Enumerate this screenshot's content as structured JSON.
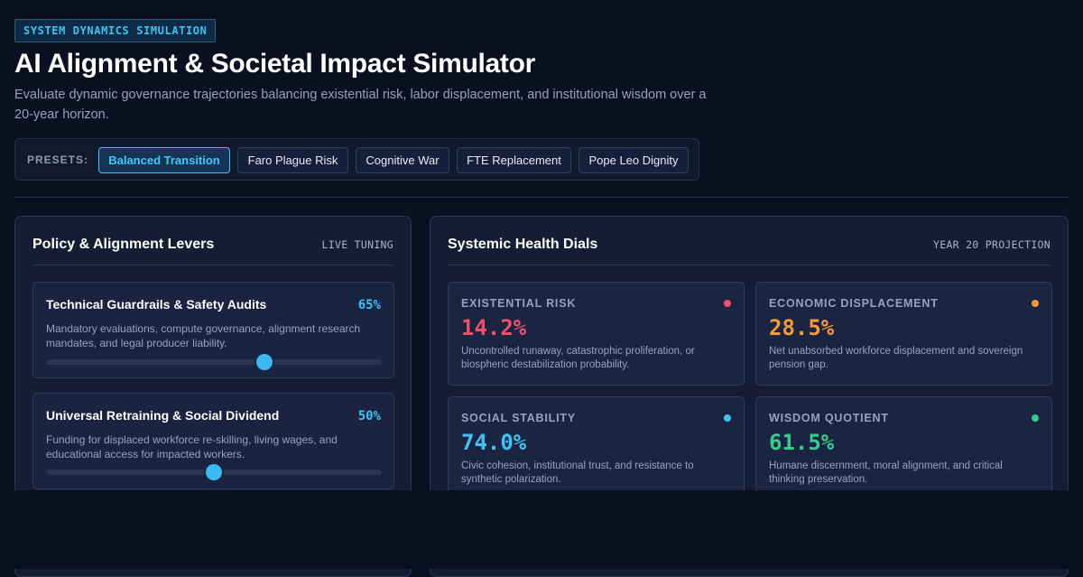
{
  "header": {
    "tag": "SYSTEM DYNAMICS SIMULATION",
    "title": "AI Alignment & Societal Impact Simulator",
    "subtitle": "Evaluate dynamic governance trajectories balancing existential risk, labor displacement, and institutional wisdom over a 20-year horizon."
  },
  "presets": {
    "label": "PRESETS:",
    "items": [
      {
        "label": "Balanced Transition",
        "active": true
      },
      {
        "label": "Faro Plague Risk",
        "active": false
      },
      {
        "label": "Cognitive War",
        "active": false
      },
      {
        "label": "FTE Replacement",
        "active": false
      },
      {
        "label": "Pope Leo Dignity",
        "active": false
      }
    ]
  },
  "levers_panel": {
    "title": "Policy & Alignment Levers",
    "meta": "LIVE TUNING",
    "levers": [
      {
        "title": "Technical Guardrails & Safety Audits",
        "value_text": "65%",
        "value": 0.65,
        "description": "Mandatory evaluations, compute governance, alignment research mandates, and legal producer liability."
      },
      {
        "title": "Universal Retraining & Social Dividend",
        "value_text": "50%",
        "value": 0.5,
        "description": "Funding for displaced workforce re-skilling, living wages, and educational access for impacted workers."
      }
    ]
  },
  "dials_panel": {
    "title": "Systemic Health Dials",
    "meta": "YEAR 20 PROJECTION",
    "dials": [
      {
        "label": "EXISTENTIAL RISK",
        "value": "14.2%",
        "color": "#f0506e",
        "description": "Uncontrolled runaway, catastrophic proliferation, or biospheric destabilization probability."
      },
      {
        "label": "ECONOMIC DISPLACEMENT",
        "value": "28.5%",
        "color": "#f59a3c",
        "description": "Net unabsorbed workforce displacement and sovereign pension gap."
      },
      {
        "label": "SOCIAL STABILITY",
        "value": "74.0%",
        "color": "#3cc4f5",
        "description": "Civic cohesion, institutional trust, and resistance to synthetic polarization."
      },
      {
        "label": "WISDOM QUOTIENT",
        "value": "61.5%",
        "color": "#2fd08f",
        "description": "Humane discernment, moral alignment, and critical thinking preservation."
      }
    ]
  }
}
